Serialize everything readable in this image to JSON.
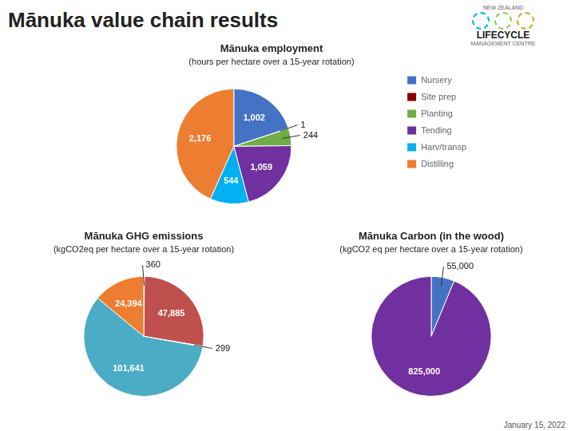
{
  "title": "Mānuka value chain results",
  "annotations": [
    "NEW ZEALAND",
    "LIFECYCLE",
    "MANAGEMENT CENTRE"
  ],
  "note": "January 15, 2022",
  "chart_data": [
    {
      "type": "pie",
      "title": "Mānuka employment",
      "subtitle": "(hours per hectare over a 15-year rotation)",
      "categories": [
        "Nursery",
        "Site prep",
        "Planting",
        "Tending",
        "Harv/transp",
        "Distilling"
      ],
      "values": [
        1002,
        1,
        244,
        1059,
        544,
        2176
      ],
      "value_labels": [
        "1,002",
        "1",
        "244",
        "1,059",
        "544",
        "2,176"
      ],
      "colors": [
        "#4472C4",
        "#8B0000",
        "#70AD47",
        "#7030A0",
        "#00B0F0",
        "#ED7D31"
      ],
      "data_labels": true,
      "legend": "right"
    },
    {
      "type": "pie",
      "title": "Mānuka GHG emissions",
      "subtitle": "(kgCO2eq per hectare over a 15-year rotation)",
      "values": [
        360,
        47885,
        299,
        101641,
        24394
      ],
      "value_labels": [
        "360",
        "47,885",
        "299",
        "101,641",
        "24,394"
      ],
      "colors": [
        "#ED7D31",
        "#C0504D",
        "#E6B8A2",
        "#4BACC6",
        "#ED7D31"
      ],
      "data_labels": true
    },
    {
      "type": "pie",
      "title": "Mānuka Carbon (in the wood)",
      "subtitle": "(kgCO2 eq per hectare over a 15-year rotation)",
      "values": [
        55000,
        825000
      ],
      "value_labels": [
        "55,000",
        "825,000"
      ],
      "colors": [
        "#4472C4",
        "#7030A0"
      ],
      "data_labels": true
    }
  ]
}
